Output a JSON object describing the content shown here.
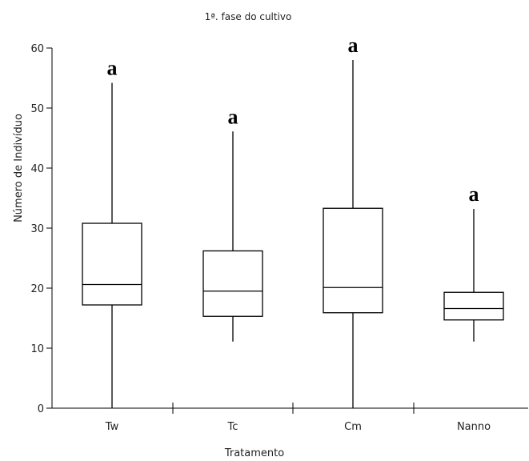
{
  "chart_data": {
    "type": "boxplot",
    "title": "1ª. fase do cultivo",
    "xlabel": "Tratamento",
    "ylabel": "Número de Indivíduo",
    "ylim": [
      0,
      60
    ],
    "yticks": [
      0,
      10,
      20,
      30,
      40,
      50,
      60
    ],
    "grid": false,
    "categories": [
      "Tw",
      "Tc",
      "Cm",
      "Nanno"
    ],
    "boxes": [
      {
        "name": "Tw",
        "min": 0,
        "q1": 17.2,
        "median": 20.6,
        "q3": 30.8,
        "max": 54.2,
        "letter": "a"
      },
      {
        "name": "Tc",
        "min": 11.1,
        "q1": 15.3,
        "median": 19.5,
        "q3": 26.2,
        "max": 46.1,
        "letter": "a"
      },
      {
        "name": "Cm",
        "min": 0,
        "q1": 15.9,
        "median": 20.1,
        "q3": 33.3,
        "max": 58.0,
        "letter": "a"
      },
      {
        "name": "Nanno",
        "min": 11.1,
        "q1": 14.7,
        "median": 16.6,
        "q3": 19.3,
        "max": 33.2,
        "letter": "a"
      }
    ]
  }
}
